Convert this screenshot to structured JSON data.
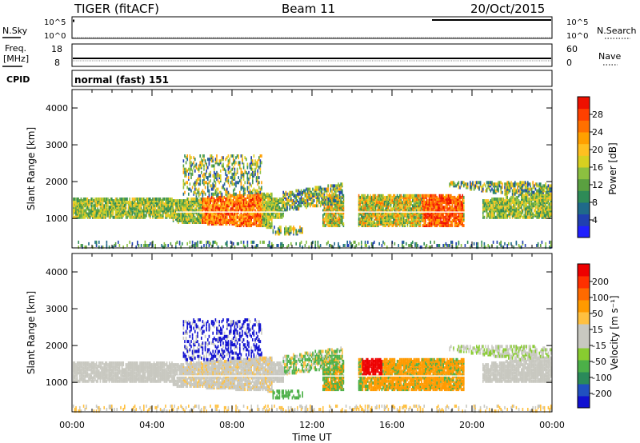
{
  "header": {
    "station": "TIGER (fitACF)",
    "beam": "Beam 11",
    "date": "20/Oct/2015"
  },
  "panels": {
    "nsky": {
      "label": "N.Sky",
      "ticks": [
        "10^5",
        "10^0"
      ]
    },
    "nsearch": {
      "label": "N.Search",
      "ticks": [
        "10^5",
        "10^0"
      ]
    },
    "freq": {
      "label1": "Freq.",
      "label2": "[MHz]",
      "ticks": [
        "18",
        "8"
      ]
    },
    "nave": {
      "label": "Nave",
      "ticks": [
        "60",
        "0"
      ]
    },
    "cpid": {
      "label": "CPID",
      "value": "normal (fast) 151"
    }
  },
  "chart_data": [
    {
      "type": "heatmap",
      "title": "",
      "ylabel": "Slant Range [km]",
      "xlabel": "",
      "ylim": [
        200,
        4500
      ],
      "yticks": [
        "1000",
        "2000",
        "3000",
        "4000"
      ],
      "xticks": [
        "00:00",
        "04:00",
        "08:00",
        "12:00",
        "16:00",
        "20:00",
        "00:00"
      ],
      "colorbar": {
        "label": "Power [dB]",
        "ticks": [
          "4",
          "8",
          "12",
          "16",
          "20",
          "24",
          "28"
        ],
        "colors": [
          "#2020ff",
          "#2040b0",
          "#1f6a8a",
          "#2e8b57",
          "#5aa040",
          "#8cc040",
          "#d8d020",
          "#ffc020",
          "#ffa000",
          "#ff7000",
          "#ff4000",
          "#ee1000"
        ]
      }
    },
    {
      "type": "heatmap",
      "title": "",
      "ylabel": "Slant Range [km]",
      "xlabel": "Time UT",
      "ylim": [
        200,
        4500
      ],
      "yticks": [
        "1000",
        "2000",
        "3000",
        "4000"
      ],
      "xticks": [
        "00:00",
        "04:00",
        "08:00",
        "12:00",
        "16:00",
        "20:00",
        "00:00"
      ],
      "colorbar": {
        "label": "Velocity [m s⁻¹]",
        "ticks": [
          "200",
          "100",
          "50",
          "15",
          "-15",
          "-50",
          "-100",
          "-200"
        ],
        "colors": [
          "#1010d0",
          "#2050c0",
          "#2a8a5a",
          "#4cb048",
          "#88cc30",
          "#c8c8c0",
          "#c8c8c0",
          "#ffc040",
          "#ff9a00",
          "#ff6a00",
          "#ff3000",
          "#ee0000"
        ]
      }
    }
  ]
}
